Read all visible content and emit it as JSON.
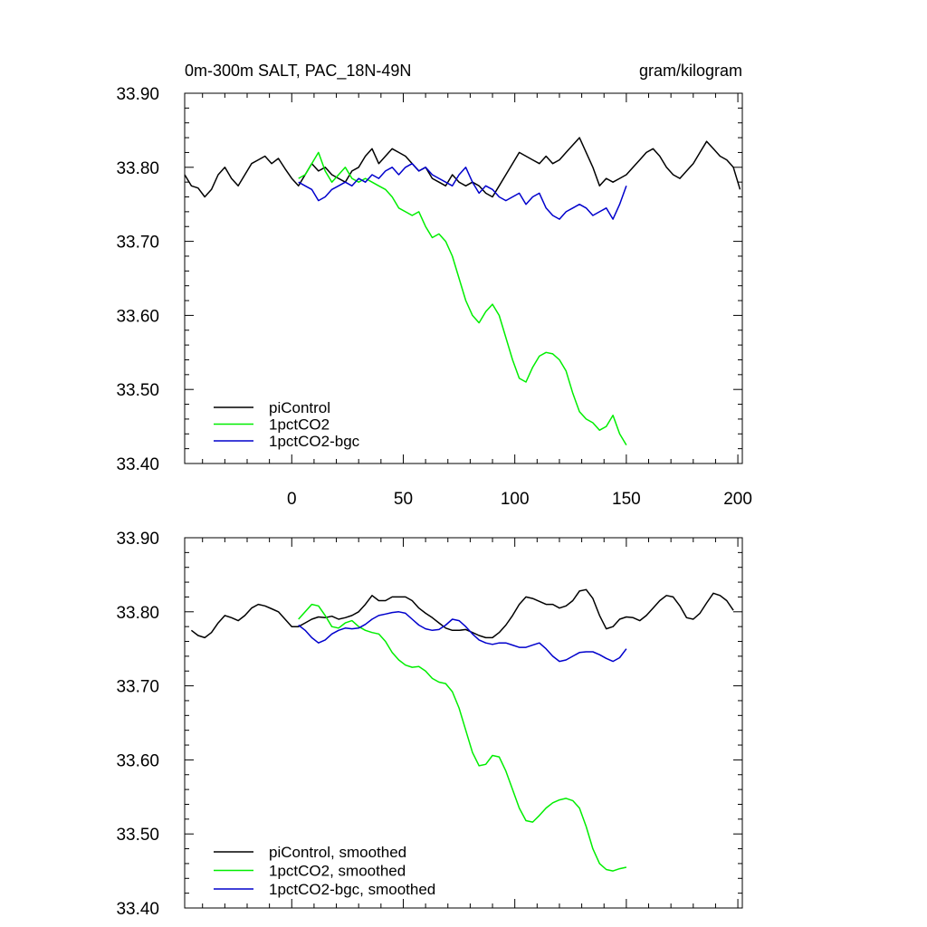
{
  "chart_data": [
    {
      "type": "line",
      "title_left": "0m-300m SALT, PAC_18N-49N",
      "title_right": "gram/kilogram",
      "xlim": [
        -48,
        202
      ],
      "ylim": [
        33.4,
        33.9
      ],
      "yticks": [
        "33.40",
        "33.50",
        "33.60",
        "33.70",
        "33.80",
        "33.90"
      ],
      "xticks": [
        "0",
        "50",
        "100",
        "150",
        "200"
      ],
      "grid": false,
      "legend_position": "bottom-left",
      "series": [
        {
          "name": "piControl",
          "color": "#000000",
          "x": [
            -48,
            -45,
            -42,
            -39,
            -36,
            -33,
            -30,
            -27,
            -24,
            -21,
            -18,
            -15,
            -12,
            -9,
            -6,
            -3,
            0,
            3,
            6,
            9,
            12,
            15,
            18,
            21,
            24,
            27,
            30,
            33,
            36,
            39,
            42,
            45,
            48,
            51,
            54,
            57,
            60,
            63,
            66,
            69,
            72,
            75,
            78,
            81,
            84,
            87,
            90,
            93,
            96,
            99,
            102,
            105,
            108,
            111,
            114,
            117,
            120,
            123,
            126,
            129,
            132,
            135,
            138,
            141,
            144,
            147,
            150,
            153,
            156,
            159,
            162,
            165,
            168,
            171,
            174,
            177,
            180,
            183,
            186,
            189,
            192,
            195,
            198,
            201
          ],
          "y": [
            33.79,
            33.775,
            33.772,
            33.76,
            33.77,
            33.79,
            33.8,
            33.785,
            33.775,
            33.79,
            33.805,
            33.81,
            33.815,
            33.805,
            33.812,
            33.798,
            33.785,
            33.775,
            33.79,
            33.805,
            33.795,
            33.8,
            33.79,
            33.785,
            33.78,
            33.795,
            33.8,
            33.815,
            33.825,
            33.805,
            33.815,
            33.825,
            33.82,
            33.815,
            33.805,
            33.795,
            33.8,
            33.785,
            33.78,
            33.775,
            33.79,
            33.78,
            33.775,
            33.78,
            33.775,
            33.765,
            33.76,
            33.775,
            33.79,
            33.805,
            33.82,
            33.815,
            33.81,
            33.805,
            33.815,
            33.805,
            33.81,
            33.82,
            33.83,
            33.84,
            33.82,
            33.8,
            33.775,
            33.785,
            33.78,
            33.785,
            33.79,
            33.8,
            33.81,
            33.82,
            33.825,
            33.815,
            33.8,
            33.79,
            33.785,
            33.795,
            33.805,
            33.82,
            33.835,
            33.825,
            33.815,
            33.81,
            33.8,
            33.77
          ]
        },
        {
          "name": "1pctCO2",
          "color": "#00ee00",
          "x": [
            3,
            6,
            9,
            12,
            15,
            18,
            21,
            24,
            27,
            30,
            33,
            36,
            39,
            42,
            45,
            48,
            51,
            54,
            57,
            60,
            63,
            66,
            69,
            72,
            75,
            78,
            81,
            84,
            87,
            90,
            93,
            96,
            99,
            102,
            105,
            108,
            111,
            114,
            117,
            120,
            123,
            126,
            129,
            132,
            135,
            138,
            141,
            144,
            147,
            150
          ],
          "y": [
            33.785,
            33.79,
            33.805,
            33.82,
            33.795,
            33.78,
            33.79,
            33.8,
            33.785,
            33.78,
            33.785,
            33.78,
            33.775,
            33.77,
            33.76,
            33.745,
            33.74,
            33.735,
            33.74,
            33.72,
            33.705,
            33.71,
            33.7,
            33.68,
            33.65,
            33.62,
            33.6,
            33.59,
            33.605,
            33.615,
            33.6,
            33.57,
            33.54,
            33.515,
            33.51,
            33.53,
            33.545,
            33.55,
            33.548,
            33.54,
            33.525,
            33.495,
            33.47,
            33.46,
            33.455,
            33.445,
            33.45,
            33.465,
            33.44,
            33.425
          ]
        },
        {
          "name": "1pctCO2-bgc",
          "color": "#0000cc",
          "x": [
            3,
            6,
            9,
            12,
            15,
            18,
            21,
            24,
            27,
            30,
            33,
            36,
            39,
            42,
            45,
            48,
            51,
            54,
            57,
            60,
            63,
            66,
            69,
            72,
            75,
            78,
            81,
            84,
            87,
            90,
            93,
            96,
            99,
            102,
            105,
            108,
            111,
            114,
            117,
            120,
            123,
            126,
            129,
            132,
            135,
            138,
            141,
            144,
            147,
            150
          ],
          "y": [
            33.78,
            33.775,
            33.77,
            33.755,
            33.76,
            33.77,
            33.775,
            33.78,
            33.775,
            33.785,
            33.78,
            33.79,
            33.785,
            33.795,
            33.8,
            33.79,
            33.8,
            33.805,
            33.795,
            33.8,
            33.79,
            33.785,
            33.78,
            33.775,
            33.79,
            33.8,
            33.78,
            33.765,
            33.775,
            33.77,
            33.76,
            33.755,
            33.76,
            33.765,
            33.75,
            33.76,
            33.765,
            33.745,
            33.735,
            33.73,
            33.74,
            33.745,
            33.75,
            33.745,
            33.735,
            33.74,
            33.745,
            33.73,
            33.75,
            33.775
          ]
        }
      ]
    },
    {
      "type": "line",
      "xlim": [
        -48,
        202
      ],
      "ylim": [
        33.4,
        33.9
      ],
      "yticks": [
        "33.40",
        "33.50",
        "33.60",
        "33.70",
        "33.80",
        "33.90"
      ],
      "grid": false,
      "legend_position": "bottom-left",
      "series": [
        {
          "name": "piControl, smoothed",
          "color": "#000000",
          "x": [
            -45,
            -42,
            -39,
            -36,
            -33,
            -30,
            -27,
            -24,
            -21,
            -18,
            -15,
            -12,
            -9,
            -6,
            -3,
            0,
            3,
            6,
            9,
            12,
            15,
            18,
            21,
            24,
            27,
            30,
            33,
            36,
            39,
            42,
            45,
            48,
            51,
            54,
            57,
            60,
            63,
            66,
            69,
            72,
            75,
            78,
            81,
            84,
            87,
            90,
            93,
            96,
            99,
            102,
            105,
            108,
            111,
            114,
            117,
            120,
            123,
            126,
            129,
            132,
            135,
            138,
            141,
            144,
            147,
            150,
            153,
            156,
            159,
            162,
            165,
            168,
            171,
            174,
            177,
            180,
            183,
            186,
            189,
            192,
            195,
            198
          ],
          "y": [
            33.775,
            33.768,
            33.765,
            33.772,
            33.785,
            33.795,
            33.792,
            33.788,
            33.795,
            33.805,
            33.81,
            33.808,
            33.804,
            33.8,
            33.79,
            33.78,
            33.78,
            33.785,
            33.79,
            33.793,
            33.792,
            33.794,
            33.79,
            33.792,
            33.795,
            33.8,
            33.81,
            33.822,
            33.815,
            33.815,
            33.82,
            33.82,
            33.82,
            33.815,
            33.805,
            33.798,
            33.792,
            33.785,
            33.778,
            33.775,
            33.775,
            33.776,
            33.772,
            33.768,
            33.765,
            33.765,
            33.772,
            33.782,
            33.795,
            33.81,
            33.82,
            33.818,
            33.814,
            33.81,
            33.81,
            33.805,
            33.808,
            33.815,
            33.828,
            33.83,
            33.818,
            33.795,
            33.777,
            33.78,
            33.79,
            33.793,
            33.792,
            33.788,
            33.795,
            33.805,
            33.815,
            33.822,
            33.82,
            33.808,
            33.792,
            33.79,
            33.798,
            33.812,
            33.825,
            33.822,
            33.815,
            33.802
          ]
        },
        {
          "name": "1pctCO2, smoothed",
          "color": "#00ee00",
          "x": [
            3,
            6,
            9,
            12,
            15,
            18,
            21,
            24,
            27,
            30,
            33,
            36,
            39,
            42,
            45,
            48,
            51,
            54,
            57,
            60,
            63,
            66,
            69,
            72,
            75,
            78,
            81,
            84,
            87,
            90,
            93,
            96,
            99,
            102,
            105,
            108,
            111,
            114,
            117,
            120,
            123,
            126,
            129,
            132,
            135,
            138,
            141,
            144,
            147,
            150
          ],
          "y": [
            33.79,
            33.8,
            33.81,
            33.808,
            33.795,
            33.78,
            33.778,
            33.785,
            33.788,
            33.78,
            33.775,
            33.772,
            33.77,
            33.76,
            33.745,
            33.735,
            33.728,
            33.725,
            33.726,
            33.72,
            33.71,
            33.705,
            33.703,
            33.692,
            33.67,
            33.64,
            33.61,
            33.592,
            33.594,
            33.606,
            33.604,
            33.585,
            33.56,
            33.535,
            33.518,
            33.516,
            33.525,
            33.535,
            33.542,
            33.546,
            33.548,
            33.545,
            33.535,
            33.51,
            33.48,
            33.46,
            33.452,
            33.45,
            33.453,
            33.455
          ]
        },
        {
          "name": "1pctCO2-bgc, smoothed",
          "color": "#0000cc",
          "x": [
            3,
            6,
            9,
            12,
            15,
            18,
            21,
            24,
            27,
            30,
            33,
            36,
            39,
            42,
            45,
            48,
            51,
            54,
            57,
            60,
            63,
            66,
            69,
            72,
            75,
            78,
            81,
            84,
            87,
            90,
            93,
            96,
            99,
            102,
            105,
            108,
            111,
            114,
            117,
            120,
            123,
            126,
            129,
            132,
            135,
            138,
            141,
            144,
            147,
            150
          ],
          "y": [
            33.782,
            33.775,
            33.765,
            33.758,
            33.762,
            33.77,
            33.775,
            33.778,
            33.777,
            33.778,
            33.783,
            33.79,
            33.795,
            33.797,
            33.799,
            33.8,
            33.798,
            33.79,
            33.782,
            33.777,
            33.775,
            33.776,
            33.782,
            33.79,
            33.788,
            33.78,
            33.77,
            33.762,
            33.758,
            33.756,
            33.758,
            33.758,
            33.755,
            33.752,
            33.752,
            33.755,
            33.758,
            33.75,
            33.74,
            33.733,
            33.735,
            33.74,
            33.745,
            33.746,
            33.746,
            33.742,
            33.737,
            33.733,
            33.738,
            33.75
          ]
        }
      ]
    }
  ]
}
